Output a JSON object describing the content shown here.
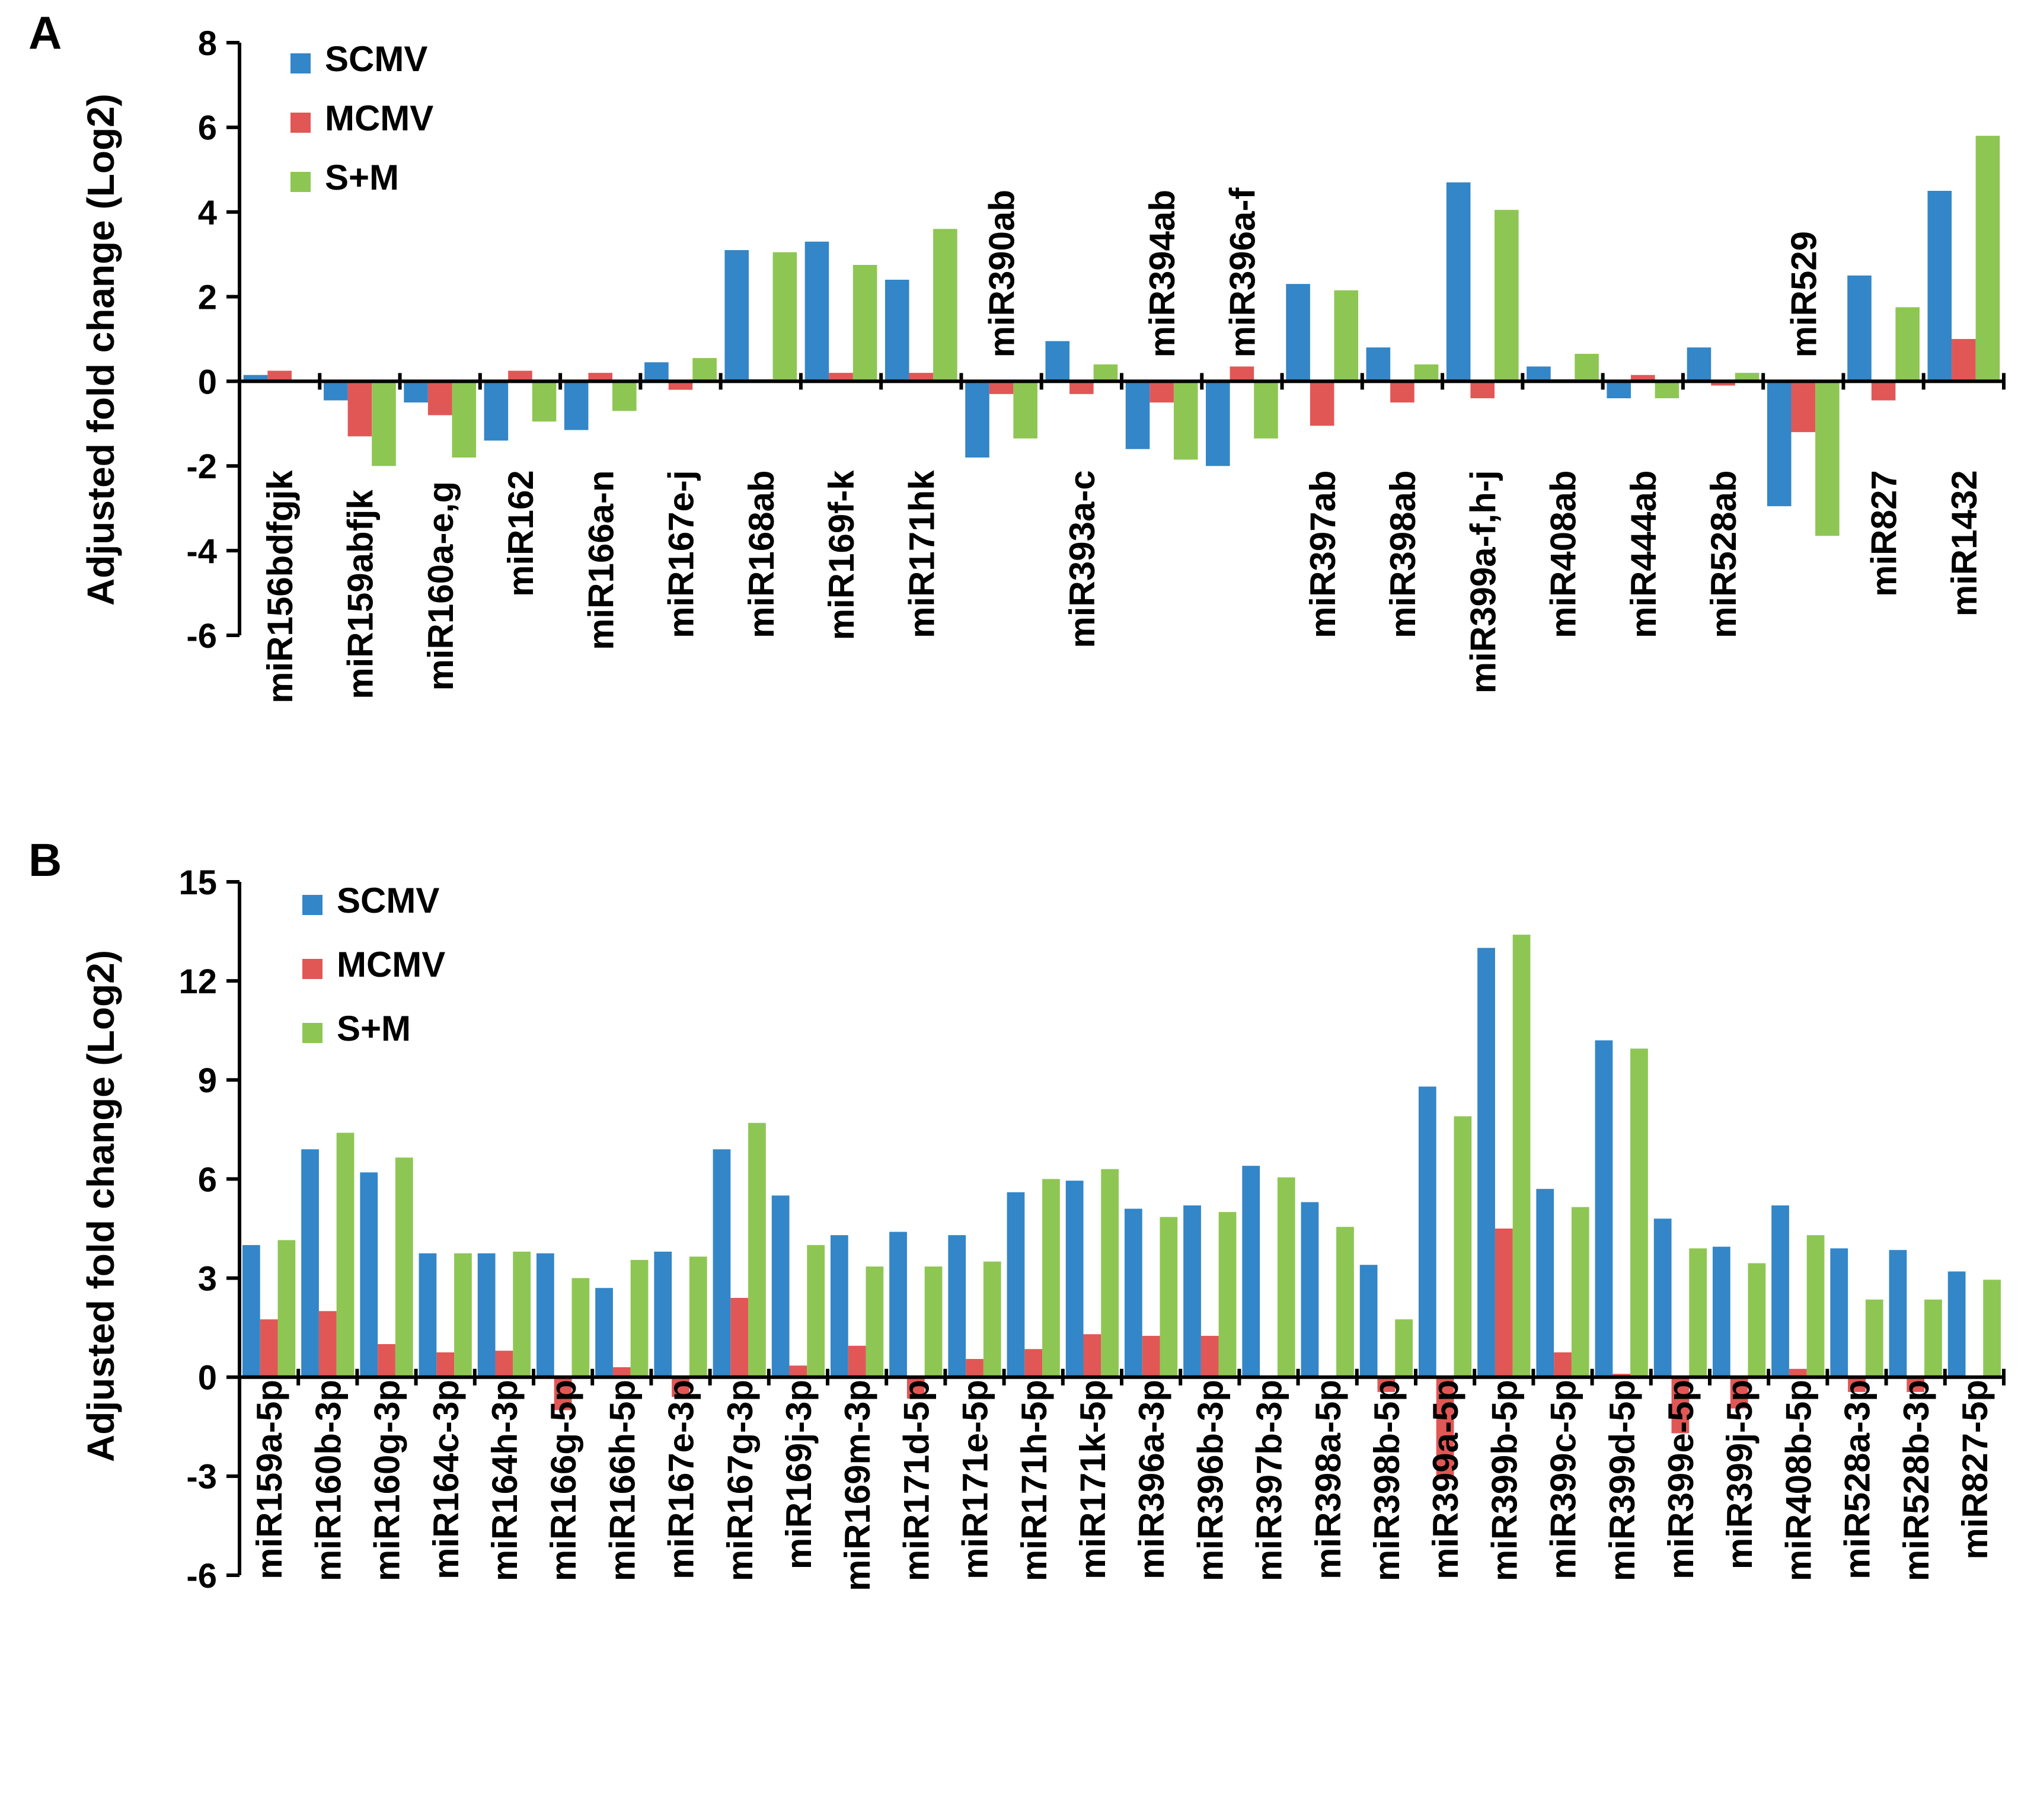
{
  "chart_data": [
    {
      "type": "bar",
      "panel_label": "A",
      "ylabel": "Adjusted fold change (Log2)",
      "ylim": [
        -6,
        8
      ],
      "yticks": [
        -6,
        -4,
        -2,
        0,
        2,
        4,
        6,
        8
      ],
      "grid": false,
      "legend": "top-left",
      "categories": [
        "miR156bdfgjk",
        "miR159abfjk",
        "miR160a-e,g",
        "miR162",
        "miR166a-n",
        "miR167e-j",
        "miR168ab",
        "miR169f-k",
        "miR171hk",
        "miR390ab",
        "miR393a-c",
        "miR394ab",
        "miR396a-f",
        "miR397ab",
        "miR398ab",
        "miR399a-f,h-j",
        "miR408ab",
        "miR444ab",
        "miR528ab",
        "miR529",
        "miR827",
        "miR1432"
      ],
      "label_position": [
        "below",
        "below",
        "below",
        "below",
        "below",
        "below",
        "below",
        "below",
        "below",
        "above",
        "below",
        "above",
        "above",
        "below",
        "below",
        "below",
        "below",
        "below",
        "below",
        "above",
        "below",
        "below"
      ],
      "series": [
        {
          "name": "SCMV",
          "values": [
            0.15,
            -0.45,
            -0.5,
            -1.4,
            -1.15,
            0.45,
            3.1,
            3.3,
            2.4,
            -1.8,
            0.95,
            -1.6,
            -2.0,
            2.3,
            0.8,
            4.7,
            0.35,
            -0.4,
            0.8,
            -2.95,
            2.5,
            4.5
          ]
        },
        {
          "name": "MCMV",
          "values": [
            0.25,
            -1.3,
            -0.8,
            0.25,
            0.2,
            -0.2,
            0.05,
            0.2,
            0.2,
            -0.3,
            -0.3,
            -0.5,
            0.35,
            -1.05,
            -0.5,
            -0.4,
            0.05,
            0.15,
            -0.1,
            -1.2,
            -0.45,
            1.0
          ]
        },
        {
          "name": "S+M",
          "values": [
            0.0,
            -2.0,
            -1.8,
            -0.95,
            -0.7,
            0.55,
            3.05,
            2.75,
            3.6,
            -1.35,
            0.4,
            -1.85,
            -1.35,
            2.15,
            0.4,
            4.05,
            0.65,
            -0.4,
            0.2,
            -3.65,
            1.75,
            5.8
          ]
        }
      ]
    },
    {
      "type": "bar",
      "panel_label": "B",
      "ylabel": "Adjusted fold change (Log2)",
      "ylim": [
        -6,
        15
      ],
      "yticks": [
        -6,
        -3,
        0,
        3,
        6,
        9,
        12,
        15
      ],
      "grid": false,
      "legend": "top-left",
      "categories": [
        "miR159a-5p",
        "miR160b-3p",
        "miR160g-3p",
        "miR164c-3p",
        "miR164h-3p",
        "miR166g-5p",
        "miR166h-5p",
        "miR167e-3p",
        "miR167g-3p",
        "miR169j-3p",
        "miR169m-3p",
        "miR171d-5p",
        "miR171e-5p",
        "miR171h-5p",
        "miR171k-5p",
        "miR396a-3p",
        "miR396b-3p",
        "miR397b-3p",
        "miR398a-5p",
        "miR398b-5p",
        "miR399a-5p",
        "miR399b-5p",
        "miR399c-5p",
        "miR399d-5p",
        "miR399e-5p",
        "miR399j-5p",
        "miR408b-5p",
        "miR528a-3p",
        "miR528b-3p",
        "miR827-5p"
      ],
      "series": [
        {
          "name": "SCMV",
          "values": [
            4.0,
            6.9,
            6.2,
            3.75,
            3.75,
            3.75,
            2.7,
            3.8,
            6.9,
            5.5,
            4.3,
            4.4,
            4.3,
            5.6,
            5.95,
            5.1,
            5.2,
            6.4,
            5.3,
            3.4,
            8.8,
            13.0,
            5.7,
            10.2,
            4.8,
            3.95,
            5.2,
            3.9,
            3.85,
            3.2
          ]
        },
        {
          "name": "MCMV",
          "values": [
            1.75,
            2.0,
            1.0,
            0.75,
            0.8,
            -1.0,
            0.3,
            -0.6,
            2.4,
            0.35,
            0.95,
            -0.65,
            0.55,
            0.85,
            1.3,
            1.25,
            1.25,
            0.0,
            0.0,
            -0.45,
            -3.1,
            4.5,
            0.75,
            0.1,
            -1.7,
            -0.95,
            0.25,
            -0.45,
            -0.45,
            0.0
          ]
        },
        {
          "name": "S+M",
          "values": [
            4.15,
            7.4,
            6.65,
            3.75,
            3.8,
            3.0,
            3.55,
            3.65,
            7.7,
            4.0,
            3.35,
            3.35,
            3.5,
            6.0,
            6.3,
            4.85,
            5.0,
            6.05,
            4.55,
            1.75,
            7.9,
            13.4,
            5.15,
            9.95,
            3.9,
            3.45,
            4.3,
            2.35,
            2.35,
            2.95
          ]
        }
      ]
    }
  ],
  "colors": {
    "SCMV": "#3386C7",
    "MCMV": "#E15756",
    "S+M": "#8EC653",
    "axis": "#000000"
  }
}
